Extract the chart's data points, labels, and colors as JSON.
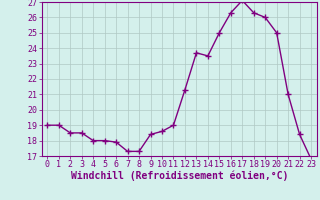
{
  "x": [
    0,
    1,
    2,
    3,
    4,
    5,
    6,
    7,
    8,
    9,
    10,
    11,
    12,
    13,
    14,
    15,
    16,
    17,
    18,
    19,
    20,
    21,
    22,
    23
  ],
  "y": [
    19.0,
    19.0,
    18.5,
    18.5,
    18.0,
    18.0,
    17.9,
    17.3,
    17.3,
    18.4,
    18.6,
    19.0,
    21.3,
    23.7,
    23.5,
    25.0,
    26.3,
    27.1,
    26.3,
    26.0,
    25.0,
    21.0,
    18.4,
    16.8
  ],
  "line_color": "#800080",
  "marker": "+",
  "marker_size": 4,
  "background_color": "#d4f0ec",
  "grid_color": "#b0c8c4",
  "xlabel": "Windchill (Refroidissement éolien,°C)",
  "ylabel": "",
  "ylim": [
    17,
    27
  ],
  "xlim": [
    -0.5,
    23.5
  ],
  "yticks": [
    17,
    18,
    19,
    20,
    21,
    22,
    23,
    24,
    25,
    26,
    27
  ],
  "xticks": [
    0,
    1,
    2,
    3,
    4,
    5,
    6,
    7,
    8,
    9,
    10,
    11,
    12,
    13,
    14,
    15,
    16,
    17,
    18,
    19,
    20,
    21,
    22,
    23
  ],
  "tick_label_color": "#800080",
  "tick_label_fontsize": 6,
  "xlabel_fontsize": 7,
  "line_width": 1.0
}
